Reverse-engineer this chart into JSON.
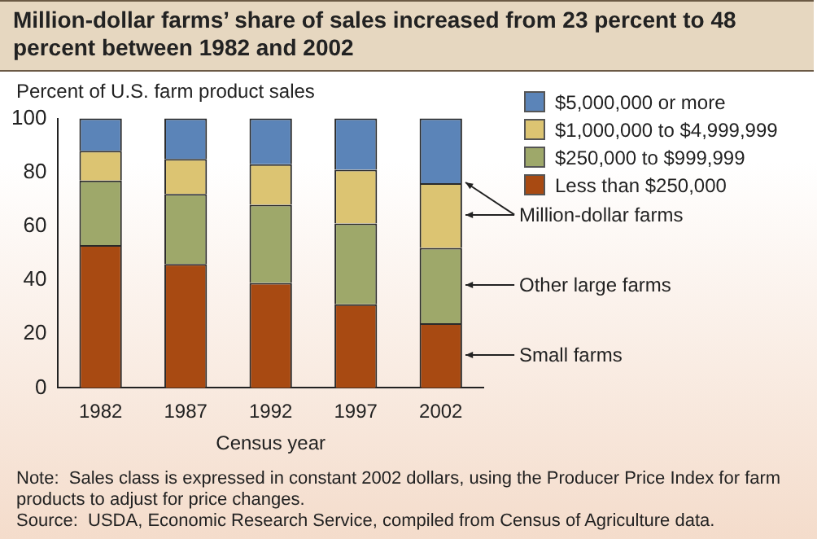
{
  "chart_data": {
    "type": "bar",
    "title": "Million-dollar farms’ share of sales increased from 23 percent to 48 percent between 1982 and 2002",
    "ylabel": "Percent of U.S. farm product sales",
    "xlabel": "Census year",
    "categories": [
      "1982",
      "1987",
      "1992",
      "1997",
      "2002"
    ],
    "stacked": true,
    "series": [
      {
        "name": "Less than $250,000",
        "color": "#a84a12",
        "values": [
          53,
          46,
          39,
          31,
          24
        ]
      },
      {
        "name": "$250,000 to $999,999",
        "color": "#9ea86a",
        "values": [
          24,
          26,
          29,
          30,
          28
        ]
      },
      {
        "name": "$1,000,000 to $4,999,999",
        "color": "#dcc472",
        "values": [
          11,
          13,
          15,
          20,
          24
        ]
      },
      {
        "name": "$5,000,000 or more",
        "color": "#5b84b8",
        "values": [
          12,
          15,
          17,
          19,
          24
        ]
      }
    ],
    "ylim": [
      0,
      100
    ],
    "yticks": [
      0,
      20,
      40,
      60,
      80,
      100
    ],
    "grid": false,
    "legend": "top right",
    "annotations": [
      "Million-dollar farms",
      "Other large farms",
      "Small farms",
      "Note:  Sales class is expressed in constant 2002 dollars, using the Producer Price Index for farm products to adjust for price changes.",
      "Source:  USDA, Economic Research Service, compiled from Census of Agriculture data."
    ]
  }
}
